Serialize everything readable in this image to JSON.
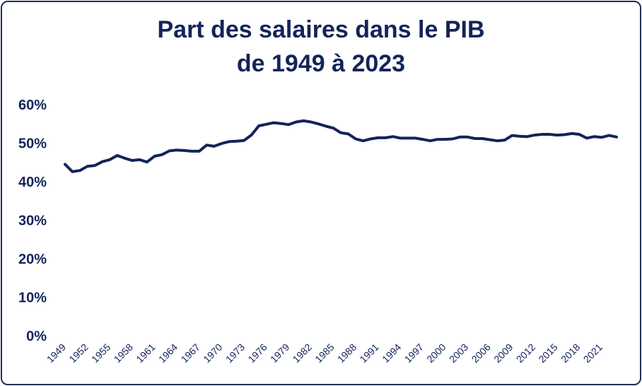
{
  "chart_data": {
    "type": "line",
    "title_line1": "Part des salaires dans le PIB",
    "title_line2": "de 1949 à 2023",
    "xlabel": "",
    "ylabel": "",
    "ylim": [
      0,
      60
    ],
    "y_ticks": [
      "0%",
      "10%",
      "20%",
      "30%",
      "40%",
      "50%",
      "60%"
    ],
    "x_ticks": [
      "1949",
      "1952",
      "1955",
      "1958",
      "1961",
      "1964",
      "1967",
      "1970",
      "1973",
      "1976",
      "1979",
      "1982",
      "1985",
      "1988",
      "1991",
      "1994",
      "1997",
      "2000",
      "2003",
      "2006",
      "2009",
      "2012",
      "2015",
      "2018",
      "2021"
    ],
    "grid": false,
    "line_color": "#13245a",
    "series": [
      {
        "x": [
          1949,
          1950,
          1951,
          1952,
          1953,
          1954,
          1955,
          1956,
          1957,
          1958,
          1959,
          1960,
          1961,
          1962,
          1963,
          1964,
          1965,
          1966,
          1967,
          1968,
          1969,
          1970,
          1971,
          1972,
          1973,
          1974,
          1975,
          1976,
          1977,
          1978,
          1979,
          1980,
          1981,
          1982,
          1983,
          1984,
          1985,
          1986,
          1987,
          1988,
          1989,
          1990,
          1991,
          1992,
          1993,
          1994,
          1995,
          1996,
          1997,
          1998,
          1999,
          2000,
          2001,
          2002,
          2003,
          2004,
          2005,
          2006,
          2007,
          2008,
          2009,
          2010,
          2011,
          2012,
          2013,
          2014,
          2015,
          2016,
          2017,
          2018,
          2019,
          2020,
          2021,
          2022,
          2023
        ],
        "values": [
          44.5,
          42.6,
          42.9,
          44.0,
          44.2,
          45.2,
          45.7,
          46.8,
          46.1,
          45.5,
          45.7,
          45.1,
          46.6,
          47.0,
          48.0,
          48.2,
          48.1,
          47.9,
          47.9,
          49.5,
          49.2,
          49.9,
          50.4,
          50.5,
          50.7,
          52.1,
          54.5,
          54.9,
          55.3,
          55.1,
          54.8,
          55.5,
          55.8,
          55.5,
          55.0,
          54.4,
          53.9,
          52.7,
          52.4,
          51.1,
          50.6,
          51.1,
          51.4,
          51.4,
          51.7,
          51.3,
          51.3,
          51.3,
          51.0,
          50.6,
          51.0,
          51.0,
          51.1,
          51.6,
          51.6,
          51.2,
          51.2,
          50.9,
          50.6,
          50.8,
          52.0,
          51.8,
          51.7,
          52.1,
          52.3,
          52.3,
          52.1,
          52.2,
          52.5,
          52.3,
          51.3,
          51.7,
          51.5,
          52.0,
          51.6
        ]
      }
    ]
  }
}
